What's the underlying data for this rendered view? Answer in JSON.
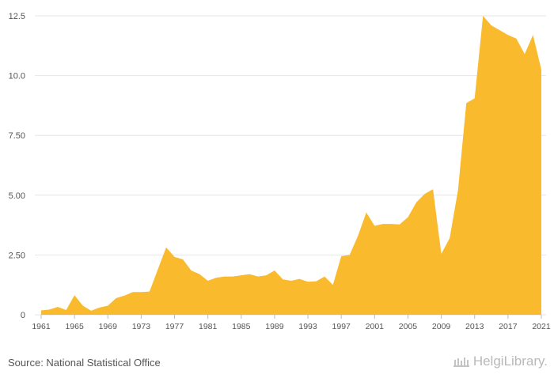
{
  "chart_data": {
    "type": "area",
    "x": [
      1961,
      1962,
      1963,
      1964,
      1965,
      1966,
      1967,
      1968,
      1969,
      1970,
      1971,
      1972,
      1973,
      1974,
      1975,
      1976,
      1977,
      1978,
      1979,
      1980,
      1981,
      1982,
      1983,
      1984,
      1985,
      1986,
      1987,
      1988,
      1989,
      1990,
      1991,
      1992,
      1993,
      1994,
      1995,
      1996,
      1997,
      1998,
      1999,
      2000,
      2001,
      2002,
      2003,
      2004,
      2005,
      2006,
      2007,
      2008,
      2009,
      2010,
      2011,
      2012,
      2013,
      2014,
      2015,
      2016,
      2017,
      2018,
      2019,
      2020,
      2021
    ],
    "values": [
      0.18,
      0.22,
      0.33,
      0.2,
      0.82,
      0.38,
      0.17,
      0.3,
      0.38,
      0.7,
      0.8,
      0.95,
      0.95,
      0.97,
      1.9,
      2.82,
      2.42,
      2.32,
      1.85,
      1.7,
      1.42,
      1.55,
      1.6,
      1.6,
      1.65,
      1.7,
      1.6,
      1.65,
      1.85,
      1.48,
      1.42,
      1.5,
      1.38,
      1.4,
      1.6,
      1.25,
      2.45,
      2.5,
      3.3,
      4.28,
      3.72,
      3.8,
      3.8,
      3.78,
      4.08,
      4.7,
      5.05,
      5.25,
      2.55,
      3.2,
      5.2,
      8.85,
      9.05,
      12.5,
      12.1,
      11.9,
      11.7,
      11.55,
      10.9,
      11.7,
      10.25
    ],
    "title": "",
    "xlabel": "",
    "ylabel": "",
    "ylim": [
      0,
      12.5
    ],
    "yticks": [
      "0",
      "2.50",
      "5.00",
      "7.50",
      "10.0",
      "12.5"
    ],
    "xticks": [
      "1961",
      "1965",
      "1969",
      "1973",
      "1977",
      "1981",
      "1985",
      "1989",
      "1993",
      "1997",
      "2001",
      "2005",
      "2009",
      "2013",
      "2017",
      "2021"
    ],
    "grid": true,
    "fill_color": "#f9bb2d"
  },
  "footer": {
    "source": "Source: National Statistical Office",
    "brand": "HelgiLibrary."
  }
}
